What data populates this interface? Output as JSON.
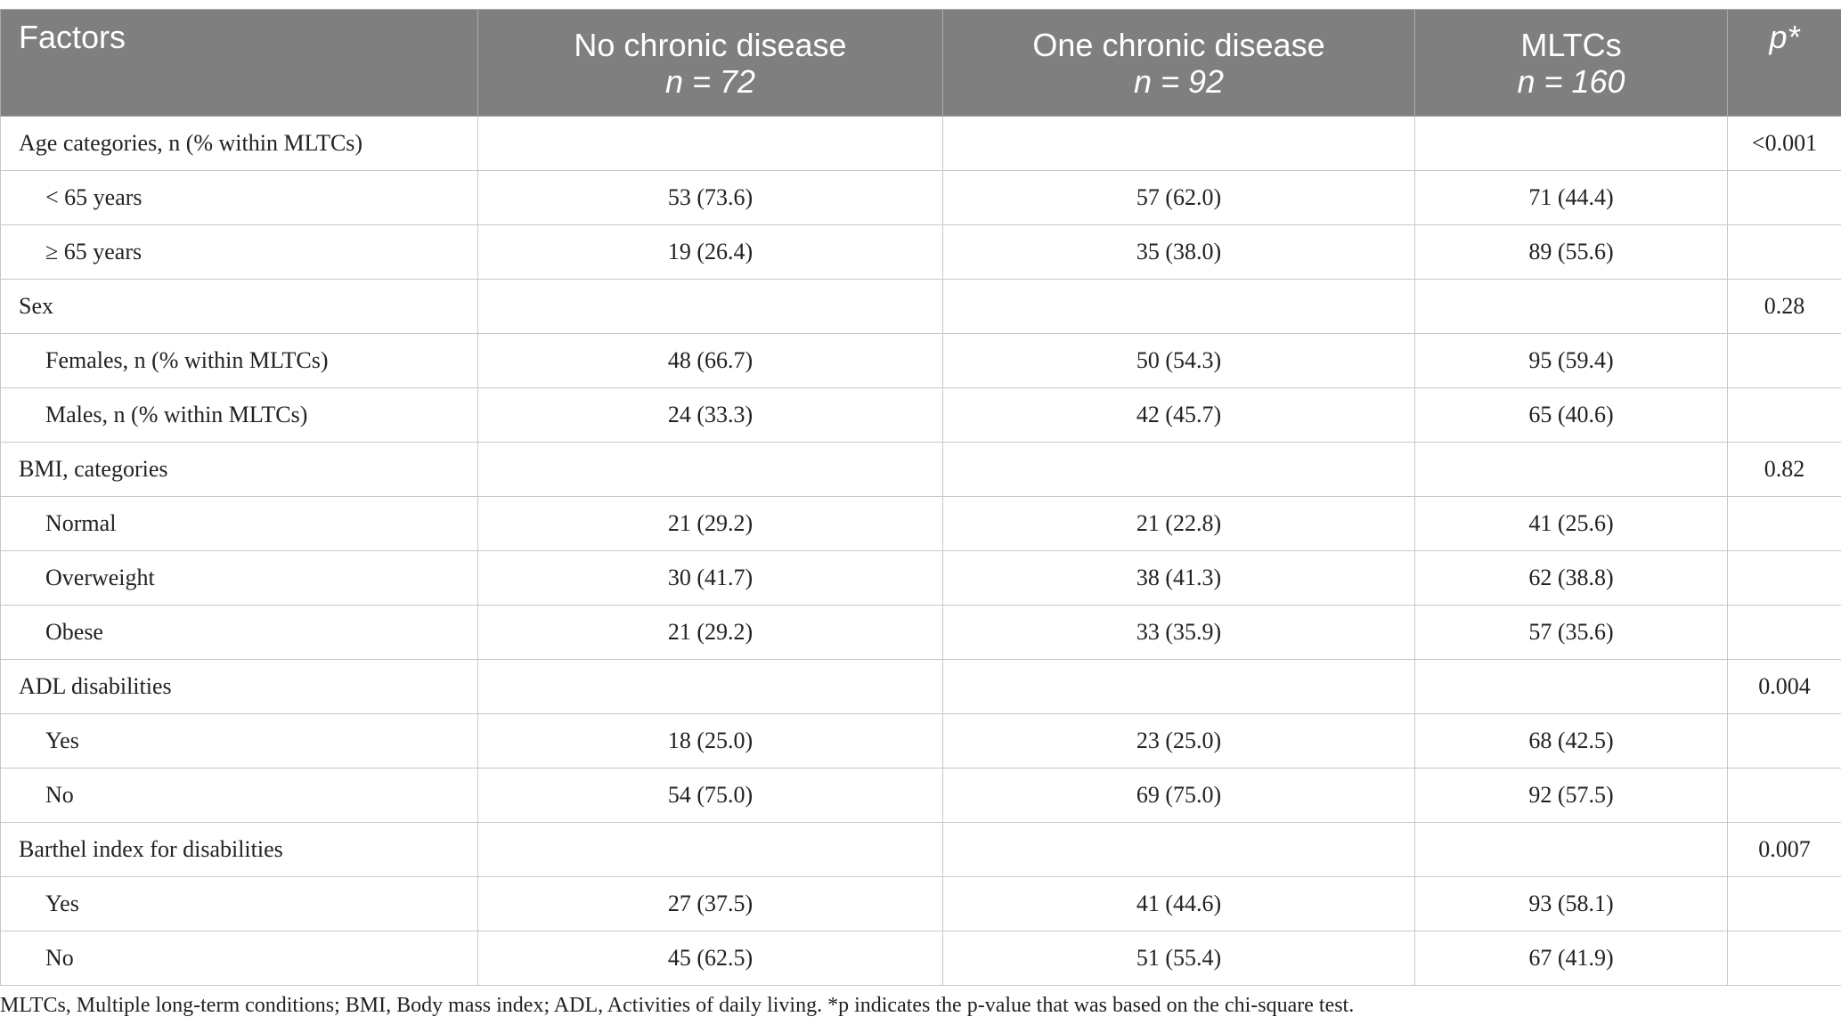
{
  "table": {
    "header": {
      "factors": "Factors",
      "columns": [
        {
          "label": "No chronic disease",
          "n": "n = 72"
        },
        {
          "label": "One chronic disease",
          "n": "n = 92"
        },
        {
          "label": "MLTCs",
          "n": "n = 160"
        }
      ],
      "p": "p*"
    },
    "groups": [
      {
        "label": "Age categories, n (% within MLTCs)",
        "p": "<0.001",
        "rows": [
          {
            "label": "< 65 years",
            "values": [
              "53 (73.6)",
              "57 (62.0)",
              "71 (44.4)"
            ]
          },
          {
            "label": "≥ 65 years",
            "values": [
              "19 (26.4)",
              "35 (38.0)",
              "89 (55.6)"
            ]
          }
        ]
      },
      {
        "label": "Sex",
        "p": "0.28",
        "rows": [
          {
            "label": "Females, n (% within MLTCs)",
            "values": [
              "48 (66.7)",
              "50 (54.3)",
              "95 (59.4)"
            ]
          },
          {
            "label": "Males, n (% within MLTCs)",
            "values": [
              "24 (33.3)",
              "42 (45.7)",
              "65 (40.6)"
            ]
          }
        ]
      },
      {
        "label": "BMI, categories",
        "p": "0.82",
        "rows": [
          {
            "label": "Normal",
            "values": [
              "21 (29.2)",
              "21 (22.8)",
              "41 (25.6)"
            ]
          },
          {
            "label": "Overweight",
            "values": [
              "30 (41.7)",
              "38 (41.3)",
              "62 (38.8)"
            ]
          },
          {
            "label": "Obese",
            "values": [
              "21 (29.2)",
              "33 (35.9)",
              "57 (35.6)"
            ]
          }
        ]
      },
      {
        "label": "ADL disabilities",
        "p": "0.004",
        "rows": [
          {
            "label": "Yes",
            "values": [
              "18 (25.0)",
              "23 (25.0)",
              "68 (42.5)"
            ]
          },
          {
            "label": "No",
            "values": [
              "54 (75.0)",
              "69 (75.0)",
              "92 (57.5)"
            ]
          }
        ]
      },
      {
        "label": "Barthel index for disabilities",
        "p": "0.007",
        "rows": [
          {
            "label": "Yes",
            "values": [
              "27 (37.5)",
              "41 (44.6)",
              "93 (58.1)"
            ]
          },
          {
            "label": "No",
            "values": [
              "45 (62.5)",
              "51 (55.4)",
              "67 (41.9)"
            ]
          }
        ]
      }
    ],
    "footnote": "MLTCs, Multiple long-term conditions; BMI, Body mass index; ADL, Activities of daily living. *p indicates the p-value that was based on the chi-square test."
  }
}
